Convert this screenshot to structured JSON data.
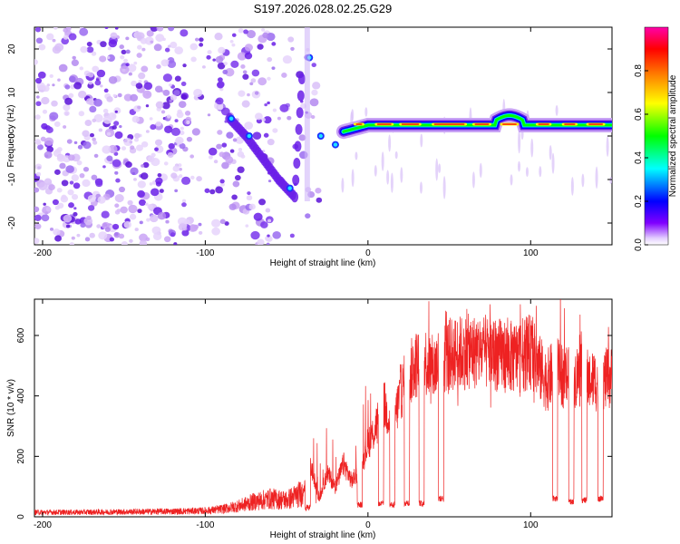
{
  "title": "S197.2026.028.02.25.G29",
  "colors": {
    "snr_line": "#ee2222",
    "spec_low": "#c9a3f5",
    "spec_mid": "#6a1fe8",
    "grid": "#888888"
  },
  "chart_data": [
    {
      "type": "heatmap",
      "name": "spectrogram",
      "xlabel": "Height of straight line (km)",
      "ylabel": "Frequency (Hz)",
      "xlim": [
        -205,
        150
      ],
      "ylim": [
        -25,
        25
      ],
      "xticks": [
        -200,
        -100,
        0,
        100
      ],
      "xtick_labels": [
        "-200",
        "-100",
        "0",
        "100"
      ],
      "yticks": [
        -20,
        -10,
        0,
        10,
        20
      ],
      "ytick_labels": [
        "-20",
        "-10",
        "0",
        "10",
        "20"
      ],
      "colorbar": {
        "label": "Normalized spectral amplitude",
        "range": [
          0,
          1
        ],
        "ticks": [
          0.0,
          0.2,
          0.4,
          0.6,
          0.8
        ],
        "tick_labels": [
          "0.0",
          "0.2",
          "0.4",
          "0.6",
          "0.8"
        ],
        "stops": [
          "#ffffff",
          "#d8b8ff",
          "#8000ff",
          "#0000ff",
          "#00ffff",
          "#00ff00",
          "#ffff00",
          "#ff8000",
          "#ff0000",
          "#ff00aa"
        ]
      },
      "ridge": {
        "description_series": "dominant frequency track (Hz) vs height (km)",
        "x": [
          -85,
          -75,
          -65,
          -55,
          -45,
          -40,
          -30,
          -20,
          -10,
          0,
          20,
          40,
          60,
          80,
          90,
          100,
          120,
          150
        ],
        "y": [
          4,
          0,
          -5,
          -10,
          -14,
          17,
          0,
          -2,
          1,
          2.5,
          2.5,
          2.5,
          2.5,
          3.5,
          4.5,
          2.5,
          2.5,
          2.5
        ]
      }
    },
    {
      "type": "line",
      "name": "snr",
      "xlabel": "Height of straight line (km)",
      "ylabel": "SNR (10 * v/v)",
      "xlim": [
        -205,
        150
      ],
      "ylim": [
        0,
        720
      ],
      "xticks": [
        -200,
        -100,
        0,
        100
      ],
      "xtick_labels": [
        "-200",
        "-100",
        "0",
        "100"
      ],
      "yticks": [
        0,
        200,
        400,
        600
      ],
      "ytick_labels": [
        "0",
        "200",
        "400",
        "600"
      ],
      "series": [
        {
          "name": "SNR",
          "x": [
            -205,
            -180,
            -160,
            -140,
            -120,
            -100,
            -90,
            -80,
            -70,
            -60,
            -50,
            -40,
            -35,
            -30,
            -25,
            -20,
            -15,
            -10,
            -5,
            0,
            5,
            10,
            15,
            20,
            25,
            30,
            35,
            40,
            45,
            50,
            60,
            70,
            80,
            90,
            100,
            110,
            115,
            120,
            130,
            140,
            150
          ],
          "y": [
            15,
            15,
            16,
            17,
            18,
            20,
            25,
            35,
            50,
            60,
            55,
            80,
            170,
            60,
            150,
            100,
            180,
            120,
            160,
            250,
            300,
            380,
            300,
            420,
            480,
            520,
            530,
            500,
            540,
            550,
            560,
            560,
            550,
            540,
            560,
            460,
            500,
            480,
            480,
            460,
            470
          ]
        }
      ],
      "dropouts": {
        "description_series": "heights (km) where SNR drops to a low value",
        "x": [
          -37,
          -5,
          8,
          15,
          24,
          33,
          45,
          115,
          125,
          133,
          143
        ],
        "y": [
          30,
          40,
          45,
          40,
          45,
          45,
          60,
          60,
          50,
          55,
          60
        ]
      }
    }
  ]
}
